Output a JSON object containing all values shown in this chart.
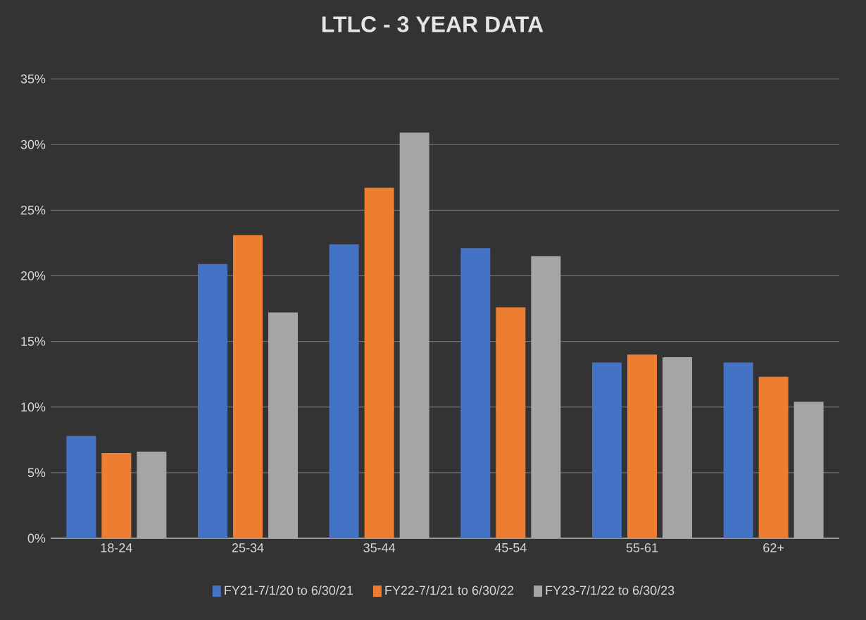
{
  "chart_data": {
    "type": "bar",
    "title": "LTLC - 3 YEAR DATA",
    "categories": [
      "18-24",
      "25-34",
      "35-44",
      "45-54",
      "55-61",
      "62+"
    ],
    "series": [
      {
        "name": "FY21-7/1/20 to 6/30/21",
        "color": "#4472c4",
        "values": [
          7.8,
          20.9,
          22.4,
          22.1,
          13.4,
          13.4
        ]
      },
      {
        "name": "FY22-7/1/21 to 6/30/22",
        "color": "#ed7d31",
        "values": [
          6.5,
          23.1,
          26.7,
          17.6,
          14.0,
          12.3
        ]
      },
      {
        "name": "FY23-7/1/22 to 6/30/23",
        "color": "#a5a5a5",
        "values": [
          6.6,
          17.2,
          30.9,
          21.5,
          13.8,
          10.4
        ]
      }
    ],
    "ylim": [
      0,
      35
    ],
    "yticks": [
      {
        "value": 0,
        "label": "0%"
      },
      {
        "value": 5,
        "label": "5%"
      },
      {
        "value": 10,
        "label": "10%"
      },
      {
        "value": 15,
        "label": "15%"
      },
      {
        "value": 20,
        "label": "20%"
      },
      {
        "value": 25,
        "label": "25%"
      },
      {
        "value": 30,
        "label": "30%"
      },
      {
        "value": 35,
        "label": "35%"
      }
    ],
    "grid": "y",
    "legend": "bottom"
  }
}
